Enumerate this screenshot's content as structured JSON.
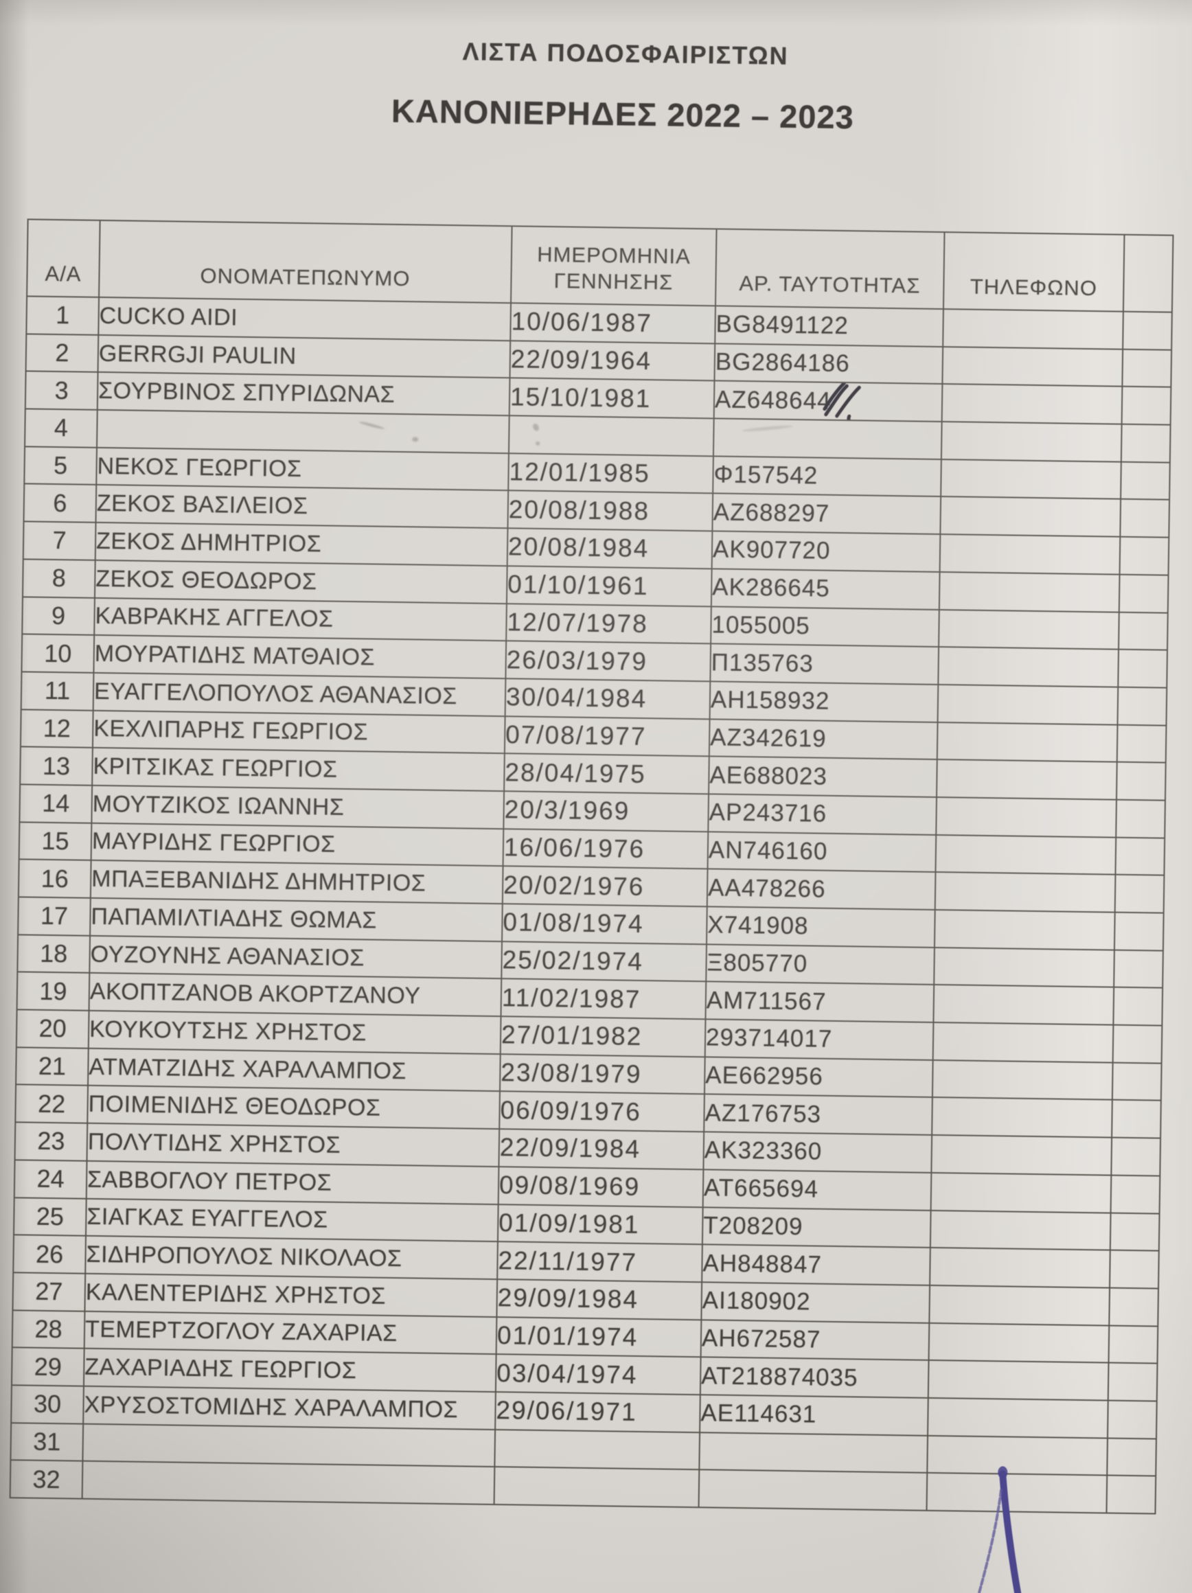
{
  "doc": {
    "title": "ΛΙΣΤΑ ΠΟΔΟΣΦΑΙΡΙΣΤΩΝ",
    "subtitle": "ΚΑΝΟΝΙΕΡΗΔΕΣ 2022 – 2023"
  },
  "table": {
    "headers": [
      "Α/Α",
      "ΟΝΟΜΑΤΕΠΩΝΥΜΟ",
      "ΗΜΕΡΟΜΗΝΙΑ\nΓΕΝΝΗΣΗΣ",
      "ΑΡ. ΤΑΥΤΟΤΗΤΑΣ",
      "ΤΗΛΕΦΩΝΟ",
      ""
    ],
    "rows": [
      {
        "num": "1",
        "name": "CUCKO AIDI",
        "dob": "10/06/1987",
        "id": "BG8491122",
        "phone": "",
        "extra": ""
      },
      {
        "num": "2",
        "name": "GERRGJI PAULIN",
        "dob": "22/09/1964",
        "id": "BG2864186",
        "phone": "",
        "extra": ""
      },
      {
        "num": "3",
        "name": "ΣΟΥΡΒΙΝΟΣ ΣΠΥΡΙΔΩΝΑΣ",
        "dob": "15/10/1981",
        "id": "ΑΖ648644",
        "phone": "",
        "extra": "",
        "id_scribbled": true
      },
      {
        "num": "4",
        "name": "",
        "dob": "",
        "id": "",
        "phone": "",
        "extra": "",
        "erased": true
      },
      {
        "num": "5",
        "name": "ΝΕΚΟΣ ΓΕΩΡΓΙΟΣ",
        "dob": "12/01/1985",
        "id": "Φ157542",
        "phone": "",
        "extra": ""
      },
      {
        "num": "6",
        "name": "ΖΕΚΟΣ ΒΑΣΙΛΕΙΟΣ",
        "dob": "20/08/1988",
        "id": "ΑΖ688297",
        "phone": "",
        "extra": ""
      },
      {
        "num": "7",
        "name": "ΖΕΚΟΣ ΔΗΜΗΤΡΙΟΣ",
        "dob": "20/08/1984",
        "id": "ΑΚ907720",
        "phone": "",
        "extra": ""
      },
      {
        "num": "8",
        "name": "ΖΕΚΟΣ ΘΕΟΔΩΡΟΣ",
        "dob": "01/10/1961",
        "id": "ΑΚ286645",
        "phone": "",
        "extra": ""
      },
      {
        "num": "9",
        "name": "ΚΑΒΡΑΚΗΣ ΑΓΓΕΛΟΣ",
        "dob": "12/07/1978",
        "id": "1055005",
        "phone": "",
        "extra": ""
      },
      {
        "num": "10",
        "name": "ΜΟΥΡΑΤΙΔΗΣ ΜΑΤΘΑΙΟΣ",
        "dob": "26/03/1979",
        "id": "Π135763",
        "phone": "",
        "extra": ""
      },
      {
        "num": "11",
        "name": "ΕΥΑΓΓΕΛΟΠΟΥΛΟΣ ΑΘΑΝΑΣΙΟΣ",
        "dob": "30/04/1984",
        "id": "ΑΗ158932",
        "phone": "",
        "extra": ""
      },
      {
        "num": "12",
        "name": "ΚΕΧΛΙΠΑΡΗΣ ΓΕΩΡΓΙΟΣ",
        "dob": "07/08/1977",
        "id": "ΑΖ342619",
        "phone": "",
        "extra": ""
      },
      {
        "num": "13",
        "name": "ΚΡΙΤΣΙΚΑΣ ΓΕΩΡΓΙΟΣ",
        "dob": "28/04/1975",
        "id": "ΑΕ688023",
        "phone": "",
        "extra": ""
      },
      {
        "num": "14",
        "name": "ΜΟΥΤΖΙΚΟΣ ΙΩΑΝΝΗΣ",
        "dob": "20/3/1969",
        "id": "ΑΡ243716",
        "phone": "",
        "extra": ""
      },
      {
        "num": "15",
        "name": "ΜΑΥΡΙΔΗΣ ΓΕΩΡΓΙΟΣ",
        "dob": "16/06/1976",
        "id": "ΑΝ746160",
        "phone": "",
        "extra": ""
      },
      {
        "num": "16",
        "name": "ΜΠΑΞΕΒΑΝΙΔΗΣ ΔΗΜΗΤΡΙΟΣ",
        "dob": "20/02/1976",
        "id": "ΑΑ478266",
        "phone": "",
        "extra": ""
      },
      {
        "num": "17",
        "name": "ΠΑΠΑΜΙΛΤΙΑΔΗΣ ΘΩΜΑΣ",
        "dob": "01/08/1974",
        "id": "Χ741908",
        "phone": "",
        "extra": ""
      },
      {
        "num": "18",
        "name": "ΟΥΖΟΥΝΗΣ ΑΘΑΝΑΣΙΟΣ",
        "dob": "25/02/1974",
        "id": "Ξ805770",
        "phone": "",
        "extra": ""
      },
      {
        "num": "19",
        "name": "ΑΚΟΠΤΖΑΝΟΒ ΑΚΟΡΤΖΑΝΟΥ",
        "dob": "11/02/1987",
        "id": "ΑΜ711567",
        "phone": "",
        "extra": ""
      },
      {
        "num": "20",
        "name": "ΚΟΥΚΟΥΤΣΗΣ ΧΡΗΣΤΟΣ",
        "dob": "27/01/1982",
        "id": "293714017",
        "phone": "",
        "extra": ""
      },
      {
        "num": "21",
        "name": "ΑΤΜΑΤΖΙΔΗΣ ΧΑΡΑΛΑΜΠΟΣ",
        "dob": "23/08/1979",
        "id": "ΑΕ662956",
        "phone": "",
        "extra": ""
      },
      {
        "num": "22",
        "name": "ΠΟΙΜΕΝΙΔΗΣ ΘΕΟΔΩΡΟΣ",
        "dob": "06/09/1976",
        "id": "ΑΖ176753",
        "phone": "",
        "extra": ""
      },
      {
        "num": "23",
        "name": "ΠΟΛΥΤΙΔΗΣ ΧΡΗΣΤΟΣ",
        "dob": "22/09/1984",
        "id": "ΑΚ323360",
        "phone": "",
        "extra": ""
      },
      {
        "num": "24",
        "name": "ΣΑΒΒΟΓΛΟΥ ΠΕΤΡΟΣ",
        "dob": "09/08/1969",
        "id": "ΑΤ665694",
        "phone": "",
        "extra": ""
      },
      {
        "num": "25",
        "name": "ΣΙΑΓΚΑΣ ΕΥΑΓΓΕΛΟΣ",
        "dob": "01/09/1981",
        "id": "Τ208209",
        "phone": "",
        "extra": ""
      },
      {
        "num": "26",
        "name": "ΣΙΔΗΡΟΠΟΥΛΟΣ ΝΙΚΟΛΑΟΣ",
        "dob": "22/11/1977",
        "id": "ΑΗ848847",
        "phone": "",
        "extra": ""
      },
      {
        "num": "27",
        "name": "ΚΑΛΕΝΤΕΡΙΔΗΣ ΧΡΗΣΤΟΣ",
        "dob": "29/09/1984",
        "id": "ΑΙ180902",
        "phone": "",
        "extra": ""
      },
      {
        "num": "28",
        "name": "ΤΕΜΕΡΤΖΟΓΛΟΥ ΖΑΧΑΡΙΑΣ",
        "dob": "01/01/1974",
        "id": "ΑΗ672587",
        "phone": "",
        "extra": ""
      },
      {
        "num": "29",
        "name": "ΖΑΧΑΡΙΑΔΗΣ ΓΕΩΡΓΙΟΣ",
        "dob": "03/04/1974",
        "id": "ΑΤ218874035",
        "phone": "",
        "extra": ""
      },
      {
        "num": "30",
        "name": "ΧΡΥΣΟΣΤΟΜΙΔΗΣ ΧΑΡΑΛΑΜΠΟΣ",
        "dob": "29/06/1971",
        "id": "ΑΕ114631",
        "phone": "",
        "extra": ""
      },
      {
        "num": "31",
        "name": "",
        "dob": "",
        "id": "",
        "phone": "",
        "extra": ""
      },
      {
        "num": "32",
        "name": "",
        "dob": "",
        "id": "",
        "phone": "",
        "extra": ""
      }
    ]
  },
  "annotations": {
    "pen_mark": "handwritten blue pen stroke at bottom right",
    "row3_id_note": "last digits overwritten with pen scribble",
    "row4_note": "entry erased, faint smudges remain"
  },
  "colors": {
    "paper": "#d8d5d0",
    "print_ink": "#403e3a",
    "pen_ink": "#4b4690"
  }
}
